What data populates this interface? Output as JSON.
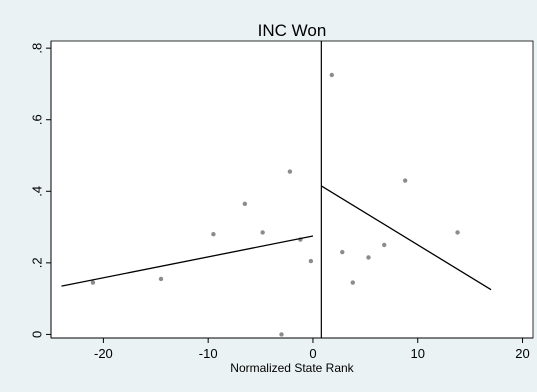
{
  "chart_data": {
    "type": "scatter",
    "title": "INC Won",
    "xlabel": "Normalized State Rank",
    "ylabel": "",
    "xlim": [
      -25,
      21
    ],
    "ylim": [
      -0.01,
      0.82
    ],
    "x_ticks": [
      {
        "value": -20,
        "label": "-20"
      },
      {
        "value": -10,
        "label": "-10"
      },
      {
        "value": 0,
        "label": "0"
      },
      {
        "value": 10,
        "label": "10"
      },
      {
        "value": 20,
        "label": "20"
      }
    ],
    "y_ticks": [
      {
        "value": 0,
        "label": "0"
      },
      {
        "value": 0.2,
        "label": ".2"
      },
      {
        "value": 0.4,
        "label": ".4"
      },
      {
        "value": 0.6,
        "label": ".6"
      },
      {
        "value": 0.8,
        "label": ".8"
      }
    ],
    "grid": false,
    "cutoff_x": 0.8,
    "points": [
      {
        "x": -21,
        "y": 0.145
      },
      {
        "x": -14.5,
        "y": 0.155
      },
      {
        "x": -9.5,
        "y": 0.28
      },
      {
        "x": -6.5,
        "y": 0.365
      },
      {
        "x": -4.8,
        "y": 0.285
      },
      {
        "x": -3,
        "y": 0.0
      },
      {
        "x": -2.2,
        "y": 0.455
      },
      {
        "x": -1.2,
        "y": 0.265
      },
      {
        "x": -0.2,
        "y": 0.205
      },
      {
        "x": 1.8,
        "y": 0.725
      },
      {
        "x": 2.8,
        "y": 0.23
      },
      {
        "x": 3.8,
        "y": 0.145
      },
      {
        "x": 5.3,
        "y": 0.215
      },
      {
        "x": 6.8,
        "y": 0.25
      },
      {
        "x": 8.8,
        "y": 0.43
      },
      {
        "x": 13.8,
        "y": 0.285
      }
    ],
    "fit_left": {
      "x": [
        -24,
        0
      ],
      "y": [
        0.135,
        0.275
      ]
    },
    "fit_right": {
      "x": [
        0.8,
        17
      ],
      "y": [
        0.415,
        0.125
      ]
    },
    "colors": {
      "background": "#eaf2f3",
      "plot_area": "#ffffff",
      "points": "#8c8c8c",
      "lines": "#000000"
    }
  }
}
